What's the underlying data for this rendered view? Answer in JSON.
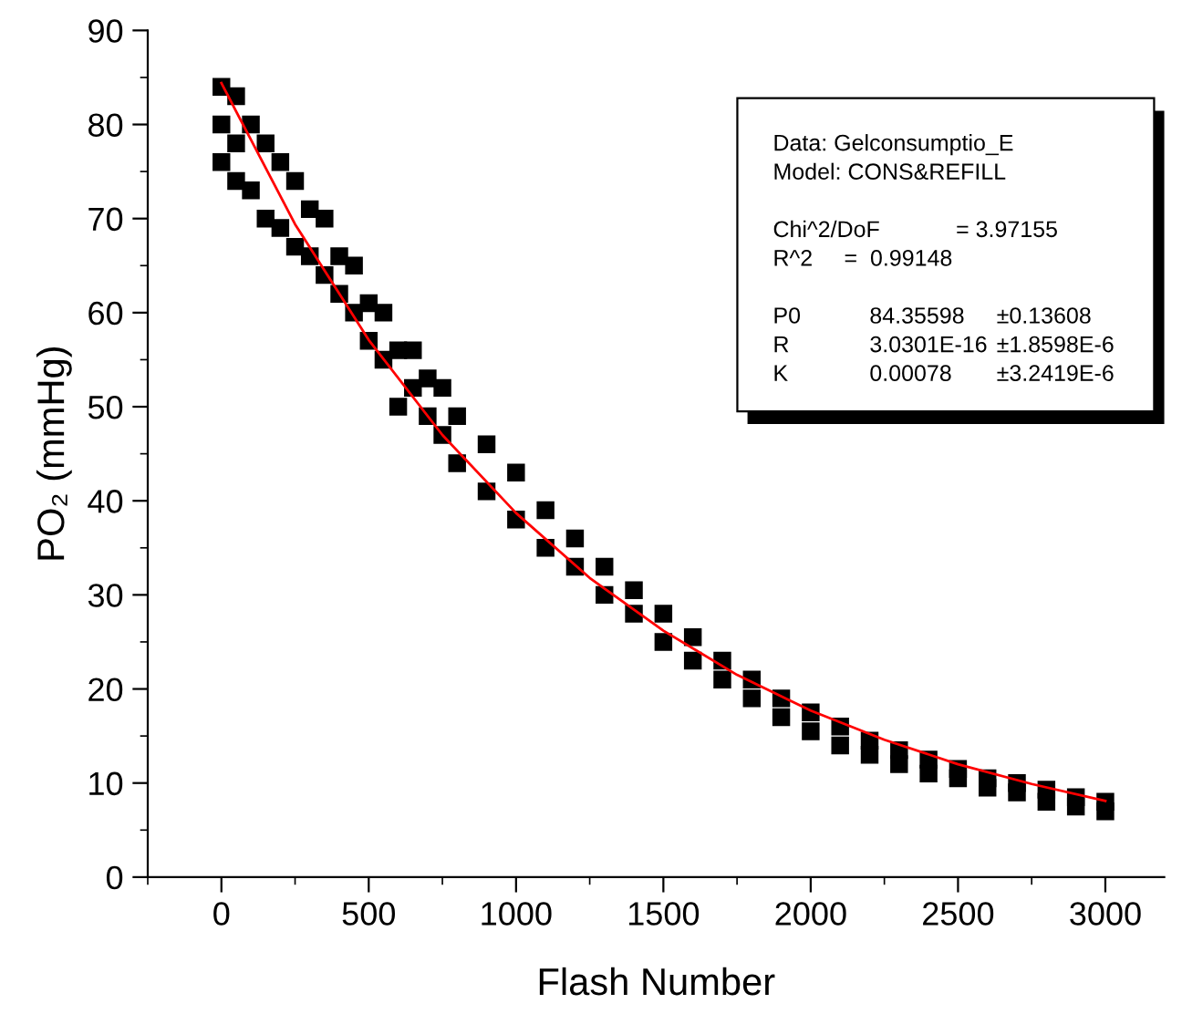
{
  "chart_data": {
    "type": "scatter",
    "xlabel": "Flash Number",
    "ylabel": "PO₂ (mmHg)",
    "xlim": [
      -250,
      3200
    ],
    "xticks": [
      0,
      500,
      1000,
      1500,
      2000,
      2500,
      3000
    ],
    "ylim": [
      0,
      90
    ],
    "yticks": [
      0,
      10,
      20,
      30,
      40,
      50,
      60,
      70,
      80,
      90
    ],
    "grid": false,
    "legend": false,
    "series": [
      {
        "marker": "square",
        "color": "#000000",
        "x": [
          0,
          0,
          0,
          50,
          50,
          50,
          100,
          100,
          150,
          150,
          200,
          200,
          250,
          250,
          300,
          300,
          350,
          350,
          400,
          400,
          450,
          450,
          500,
          500,
          550,
          550,
          600,
          600,
          650,
          650,
          700,
          700,
          750,
          750,
          800,
          800,
          900,
          900,
          1000,
          1000,
          1100,
          1100,
          1200,
          1200,
          1300,
          1300,
          1400,
          1400,
          1500,
          1500,
          1600,
          1600,
          1700,
          1700,
          1800,
          1800,
          1900,
          1900,
          2000,
          2000,
          2100,
          2100,
          2200,
          2200,
          2300,
          2300,
          2400,
          2400,
          2500,
          2500,
          2600,
          2600,
          2700,
          2700,
          2800,
          2800,
          2900,
          2900,
          3000,
          3000
        ],
        "values": [
          76,
          80,
          84,
          74,
          78,
          83,
          73,
          80,
          70,
          78,
          69,
          76,
          67,
          74,
          66,
          71,
          64,
          70,
          62,
          66,
          60,
          65,
          57,
          61,
          55,
          60,
          50,
          56,
          52,
          56,
          49,
          53,
          47,
          52,
          44,
          49,
          41,
          46,
          38,
          43,
          35,
          39,
          33,
          36,
          30,
          33,
          28,
          30.5,
          25,
          28,
          23,
          25.5,
          21,
          23,
          19,
          21,
          17,
          19,
          15.5,
          17.5,
          14,
          16,
          13,
          14.5,
          12,
          13.5,
          11,
          12.5,
          10.5,
          11.5,
          9.5,
          10.5,
          9,
          10,
          8,
          9.3,
          7.5,
          8.5,
          7,
          8
        ]
      },
      {
        "type": "line",
        "color": "#ff0000",
        "line_style": "solid",
        "marker": "none",
        "x": [
          0,
          250,
          500,
          750,
          1000,
          1250,
          1500,
          1750,
          2000,
          2250,
          2500,
          2750,
          3000
        ],
        "values": [
          84.4,
          69.4,
          57.1,
          47.0,
          38.7,
          31.8,
          26.2,
          21.5,
          17.7,
          14.6,
          12.0,
          9.9,
          8.1
        ]
      }
    ],
    "annotations": [
      "Data: Gelconsumptio_E",
      "Model: CONS&REFILL",
      "Chi^2/DoF",
      "= 3.97155",
      "R^2",
      "=  0.99148",
      "P0",
      "84.35598",
      "±0.13608",
      "R",
      "3.0301E-16",
      "±1.8598E-6",
      "K",
      "0.00078",
      "±3.2419E-6"
    ]
  }
}
